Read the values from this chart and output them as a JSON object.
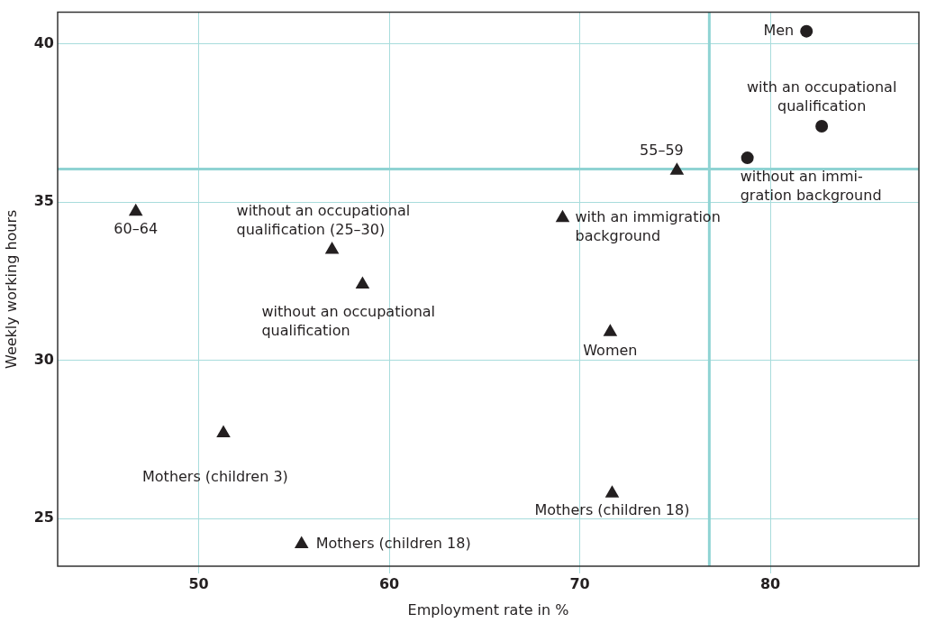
{
  "chart_data": {
    "type": "scatter",
    "xlabel": "Employment rate in %",
    "ylabel": "Weekly working hours",
    "xlim": [
      42.6,
      87.8
    ],
    "xticks": [
      50,
      60,
      70,
      80
    ],
    "ylim": [
      23.5,
      41
    ],
    "yticks": [
      25,
      30,
      35,
      40
    ],
    "grid": true,
    "series": [
      {
        "marker": "circle",
        "color": "#231f20",
        "x": [
          81.9,
          82.7,
          78.8
        ],
        "values": [
          40.4,
          37.4,
          36.4
        ],
        "value_labels": [
          "Men",
          "with an occupational\nqualification",
          "without an immi-\ngration background"
        ]
      },
      {
        "marker": "triangle",
        "color": "#231f20",
        "x": [
          46.7,
          57.0,
          58.6,
          75.1,
          69.1,
          51.3,
          55.4,
          71.6,
          71.7
        ],
        "values": [
          34.7,
          33.5,
          32.4,
          36.0,
          34.5,
          27.7,
          24.2,
          30.9,
          25.8
        ],
        "value_labels": [
          "60–64",
          "without an occupational\nqualification (25–30)",
          "without an occupational\nqualification",
          "55–59",
          "with an immigration\nbackground",
          "Mothers (children 3)",
          "Mothers (children 18)",
          "Women",
          "Mothers (children 18)"
        ]
      }
    ],
    "ref_lines": [
      {
        "axis": "x",
        "value": 76.8,
        "color": "#8fd3d3"
      },
      {
        "axis": "y",
        "value": 36.05,
        "color": "#8fd3d3"
      }
    ]
  }
}
